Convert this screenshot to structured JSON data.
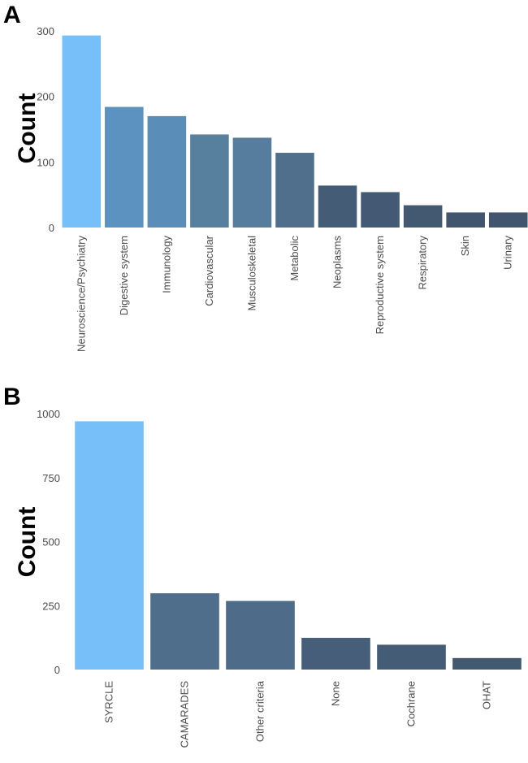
{
  "chart_data": [
    {
      "type": "bar",
      "panel_label": "A",
      "title": "",
      "xlabel": "",
      "ylabel": "Count",
      "ylim": [
        0,
        300
      ],
      "yticks": [
        0,
        100,
        200,
        300
      ],
      "grid": false,
      "categories": [
        "Neuroscience/Psychiatry",
        "Digestive system",
        "Immunology",
        "Cardiovascular",
        "Musculoskeletal",
        "Metabolic",
        "Neoplasms",
        "Reproductive system",
        "Respiratory",
        "Skin",
        "Urinary"
      ],
      "values": [
        293,
        184,
        170,
        142,
        137,
        114,
        64,
        54,
        34,
        23,
        23
      ],
      "colors": [
        "#76bff8",
        "#5c92c0",
        "#5a8db8",
        "#57809f",
        "#567d9d",
        "#4f6f8d",
        "#455c77",
        "#445a74",
        "#435871",
        "#42556e",
        "#42556e"
      ]
    },
    {
      "type": "bar",
      "panel_label": "B",
      "title": "",
      "xlabel": "",
      "ylabel": "Count",
      "ylim": [
        0,
        1000
      ],
      "yticks": [
        0,
        250,
        500,
        750,
        1000
      ],
      "grid": false,
      "categories": [
        "SYRCLE",
        "CAMARADES",
        "Other criteria",
        "None",
        "Cochrane",
        "OHAT"
      ],
      "values": [
        970,
        298,
        268,
        124,
        97,
        45
      ],
      "colors": [
        "#76bff8",
        "#4f6e8c",
        "#4e6c89",
        "#465e79",
        "#455c77",
        "#435871"
      ]
    }
  ]
}
